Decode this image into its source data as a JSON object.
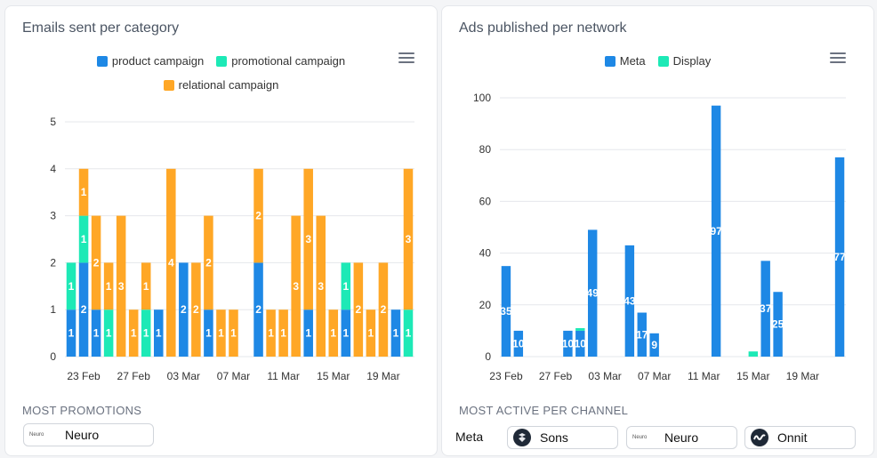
{
  "left_card": {
    "title": "Emails sent per category",
    "section_label": "MOST PROMOTIONS",
    "top_brand": {
      "logo_text": "Neuro",
      "name": "Neuro"
    }
  },
  "right_card": {
    "title": "Ads published per network",
    "section_label": "MOST ACTIVE PER CHANNEL",
    "channel_label": "Meta",
    "brands": [
      {
        "name": "Sons",
        "logo": "sons-logo-icon"
      },
      {
        "name": "Neuro",
        "logo_text": "Neuro"
      },
      {
        "name": "Onnit",
        "logo": "onnit-logo-icon"
      }
    ]
  },
  "chart_data": [
    {
      "type": "bar",
      "stacked": true,
      "title": "Emails sent per category",
      "ylim": [
        0,
        5
      ],
      "yticks": [
        0,
        1,
        2,
        3,
        4,
        5
      ],
      "x_tick_labels": [
        "23 Feb",
        "27 Feb",
        "03 Mar",
        "07 Mar",
        "11 Mar",
        "15 Mar",
        "19 Mar"
      ],
      "x_tick_indices": [
        1,
        5,
        9,
        13,
        17,
        21,
        25
      ],
      "colors": {
        "product campaign": "#1e88e5",
        "promotional campaign": "#1de9b6",
        "relational campaign": "#ffa726"
      },
      "legend": [
        "product campaign",
        "promotional campaign",
        "relational campaign"
      ],
      "series": [
        {
          "name": "product campaign",
          "values": [
            1,
            2,
            1,
            0,
            0,
            0,
            0,
            1,
            0,
            2,
            0,
            1,
            0,
            0,
            0,
            2,
            0,
            0,
            0,
            1,
            0,
            0,
            1,
            0,
            0,
            0,
            1,
            0
          ]
        },
        {
          "name": "promotional campaign",
          "values": [
            1,
            1,
            0,
            1,
            0,
            0,
            1,
            0,
            0,
            0,
            0,
            0,
            0,
            0,
            0,
            0,
            0,
            0,
            0,
            0,
            0,
            0,
            1,
            0,
            0,
            0,
            0,
            1
          ]
        },
        {
          "name": "relational campaign",
          "values": [
            0,
            1,
            2,
            1,
            3,
            1,
            1,
            0,
            4,
            0,
            2,
            2,
            1,
            1,
            0,
            2,
            1,
            1,
            3,
            3,
            3,
            1,
            0,
            2,
            1,
            2,
            0,
            3
          ]
        }
      ]
    },
    {
      "type": "bar",
      "stacked": true,
      "title": "Ads published per network",
      "ylim": [
        0,
        100
      ],
      "yticks": [
        0,
        20,
        40,
        60,
        80,
        100
      ],
      "x_tick_labels": [
        "23 Feb",
        "27 Feb",
        "03 Mar",
        "07 Mar",
        "11 Mar",
        "15 Mar",
        "19 Mar"
      ],
      "x_tick_indices": [
        0,
        4,
        8,
        12,
        16,
        20,
        24
      ],
      "colors": {
        "Meta": "#1e88e5",
        "Display": "#1de9b6"
      },
      "legend": [
        "Meta",
        "Display"
      ],
      "series": [
        {
          "name": "Meta",
          "values": [
            35,
            10,
            0,
            0,
            0,
            10,
            10,
            49,
            0,
            0,
            43,
            17,
            9,
            0,
            0,
            0,
            0,
            97,
            0,
            0,
            0,
            37,
            25,
            0,
            0,
            0,
            0,
            77
          ]
        },
        {
          "name": "Display",
          "values": [
            0,
            0,
            0,
            0,
            0,
            0,
            1,
            0,
            0,
            0,
            0,
            0,
            0,
            0,
            0,
            0,
            0,
            0,
            0,
            0,
            2,
            0,
            0,
            0,
            0,
            0,
            0,
            0
          ]
        }
      ],
      "shown_labels": {
        "Meta": [
          35,
          10,
          null,
          null,
          null,
          10,
          10,
          49,
          null,
          null,
          43,
          17,
          9,
          null,
          null,
          null,
          null,
          97,
          null,
          null,
          null,
          37,
          25,
          null,
          null,
          null,
          null,
          77
        ],
        "Display": []
      }
    }
  ]
}
